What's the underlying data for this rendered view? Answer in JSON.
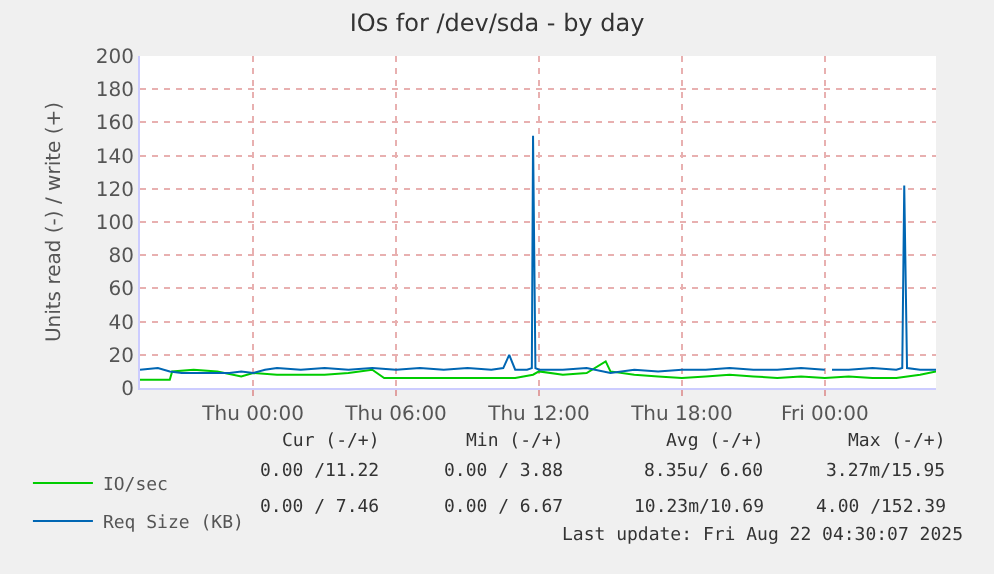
{
  "chart_data": {
    "type": "line",
    "title": "IOs for /dev/sda - by day",
    "ylabel": "Units read (-) / write (+)",
    "xlim": [
      "2025-08-20T19:15",
      "2025-08-22T04:40"
    ],
    "xticks": [
      {
        "value": "2025-08-21T00:00",
        "label": "Thu 00:00"
      },
      {
        "value": "2025-08-21T06:00",
        "label": "Thu 06:00"
      },
      {
        "value": "2025-08-21T12:00",
        "label": "Thu 12:00"
      },
      {
        "value": "2025-08-21T18:00",
        "label": "Thu 18:00"
      },
      {
        "value": "2025-08-22T00:00",
        "label": "Fri 00:00"
      }
    ],
    "ylim": [
      0,
      200
    ],
    "yticks": [
      0,
      20,
      40,
      60,
      80,
      100,
      120,
      140,
      160,
      180,
      200
    ],
    "grid": true,
    "legend": "bottom left",
    "series": [
      {
        "name": "IO/sec",
        "color": "#00cc00",
        "x": [
          "2025-08-20T19:15",
          "2025-08-20T20:30",
          "2025-08-20T20:36",
          "2025-08-20T21:30",
          "2025-08-20T22:30",
          "2025-08-20T23:30",
          "2025-08-21T00:00",
          "2025-08-21T01:00",
          "2025-08-21T02:00",
          "2025-08-21T03:00",
          "2025-08-21T04:00",
          "2025-08-21T05:00",
          "2025-08-21T05:30",
          "2025-08-21T06:00",
          "2025-08-21T08:00",
          "2025-08-21T10:00",
          "2025-08-21T11:00",
          "2025-08-21T11:45",
          "2025-08-21T12:00",
          "2025-08-21T13:00",
          "2025-08-21T14:00",
          "2025-08-21T14:48",
          "2025-08-21T15:00",
          "2025-08-21T16:00",
          "2025-08-21T17:00",
          "2025-08-21T18:00",
          "2025-08-21T19:00",
          "2025-08-21T20:00",
          "2025-08-21T21:00",
          "2025-08-21T22:00",
          "2025-08-21T23:00",
          "2025-08-22T00:00",
          "2025-08-22T01:00",
          "2025-08-22T02:00",
          "2025-08-22T03:00",
          "2025-08-22T04:00",
          "2025-08-22T04:40"
        ],
        "values": [
          5,
          5,
          10,
          11,
          10,
          7,
          9,
          8,
          8,
          8,
          9,
          11,
          6,
          6,
          6,
          6,
          6,
          8,
          10,
          8,
          9,
          16,
          10,
          8,
          7,
          6,
          7,
          8,
          7,
          6,
          7,
          6,
          7,
          6,
          6,
          8,
          10
        ]
      },
      {
        "name": "Req Size (KB)",
        "color": "#0066b3",
        "x": [
          "2025-08-20T19:15",
          "2025-08-20T20:00",
          "2025-08-20T20:30",
          "2025-08-20T21:00",
          "2025-08-20T22:00",
          "2025-08-20T23:00",
          "2025-08-20T23:30",
          "2025-08-21T00:00",
          "2025-08-21T00:30",
          "2025-08-21T01:00",
          "2025-08-21T02:00",
          "2025-08-21T03:00",
          "2025-08-21T04:00",
          "2025-08-21T05:00",
          "2025-08-21T06:00",
          "2025-08-21T07:00",
          "2025-08-21T08:00",
          "2025-08-21T09:00",
          "2025-08-21T10:00",
          "2025-08-21T10:30",
          "2025-08-21T10:45",
          "2025-08-21T11:00",
          "2025-08-21T11:30",
          "2025-08-21T11:42",
          "2025-08-21T11:45",
          "2025-08-21T11:51",
          "2025-08-21T12:00",
          "2025-08-21T13:00",
          "2025-08-21T14:00",
          "2025-08-21T15:00",
          "2025-08-21T16:00",
          "2025-08-21T17:00",
          "2025-08-21T18:00",
          "2025-08-21T19:00",
          "2025-08-21T20:00",
          "2025-08-21T21:00",
          "2025-08-21T22:00",
          "2025-08-21T23:00",
          "2025-08-22T00:00",
          "2025-08-22T00:06",
          "2025-08-22T00:18",
          "2025-08-22T01:00",
          "2025-08-22T02:00",
          "2025-08-22T03:00",
          "2025-08-22T03:15",
          "2025-08-22T03:20",
          "2025-08-22T03:27",
          "2025-08-22T04:00",
          "2025-08-22T04:40"
        ],
        "values": [
          11,
          12,
          10,
          9,
          9,
          9,
          10,
          9,
          11,
          12,
          11,
          12,
          11,
          12,
          11,
          12,
          11,
          12,
          11,
          12,
          20,
          11,
          11,
          12,
          152,
          12,
          11,
          11,
          12,
          9,
          11,
          10,
          11,
          11,
          12,
          11,
          11,
          12,
          11,
          null,
          11,
          11,
          12,
          11,
          12,
          122,
          12,
          11,
          11
        ]
      }
    ],
    "annotations": [
      "Cur (-/+)",
      "Min (-/+)",
      "Avg (-/+)",
      "Max (-/+)",
      "0.00 /11.22",
      "0.00 / 3.88",
      "8.35u/ 6.60",
      "3.27m/15.95",
      "0.00 / 7.46",
      "0.00 / 6.67",
      "10.23m/10.69",
      "4.00 /152.39",
      "Last update: Fri Aug 22 04:30:07 2025"
    ]
  }
}
